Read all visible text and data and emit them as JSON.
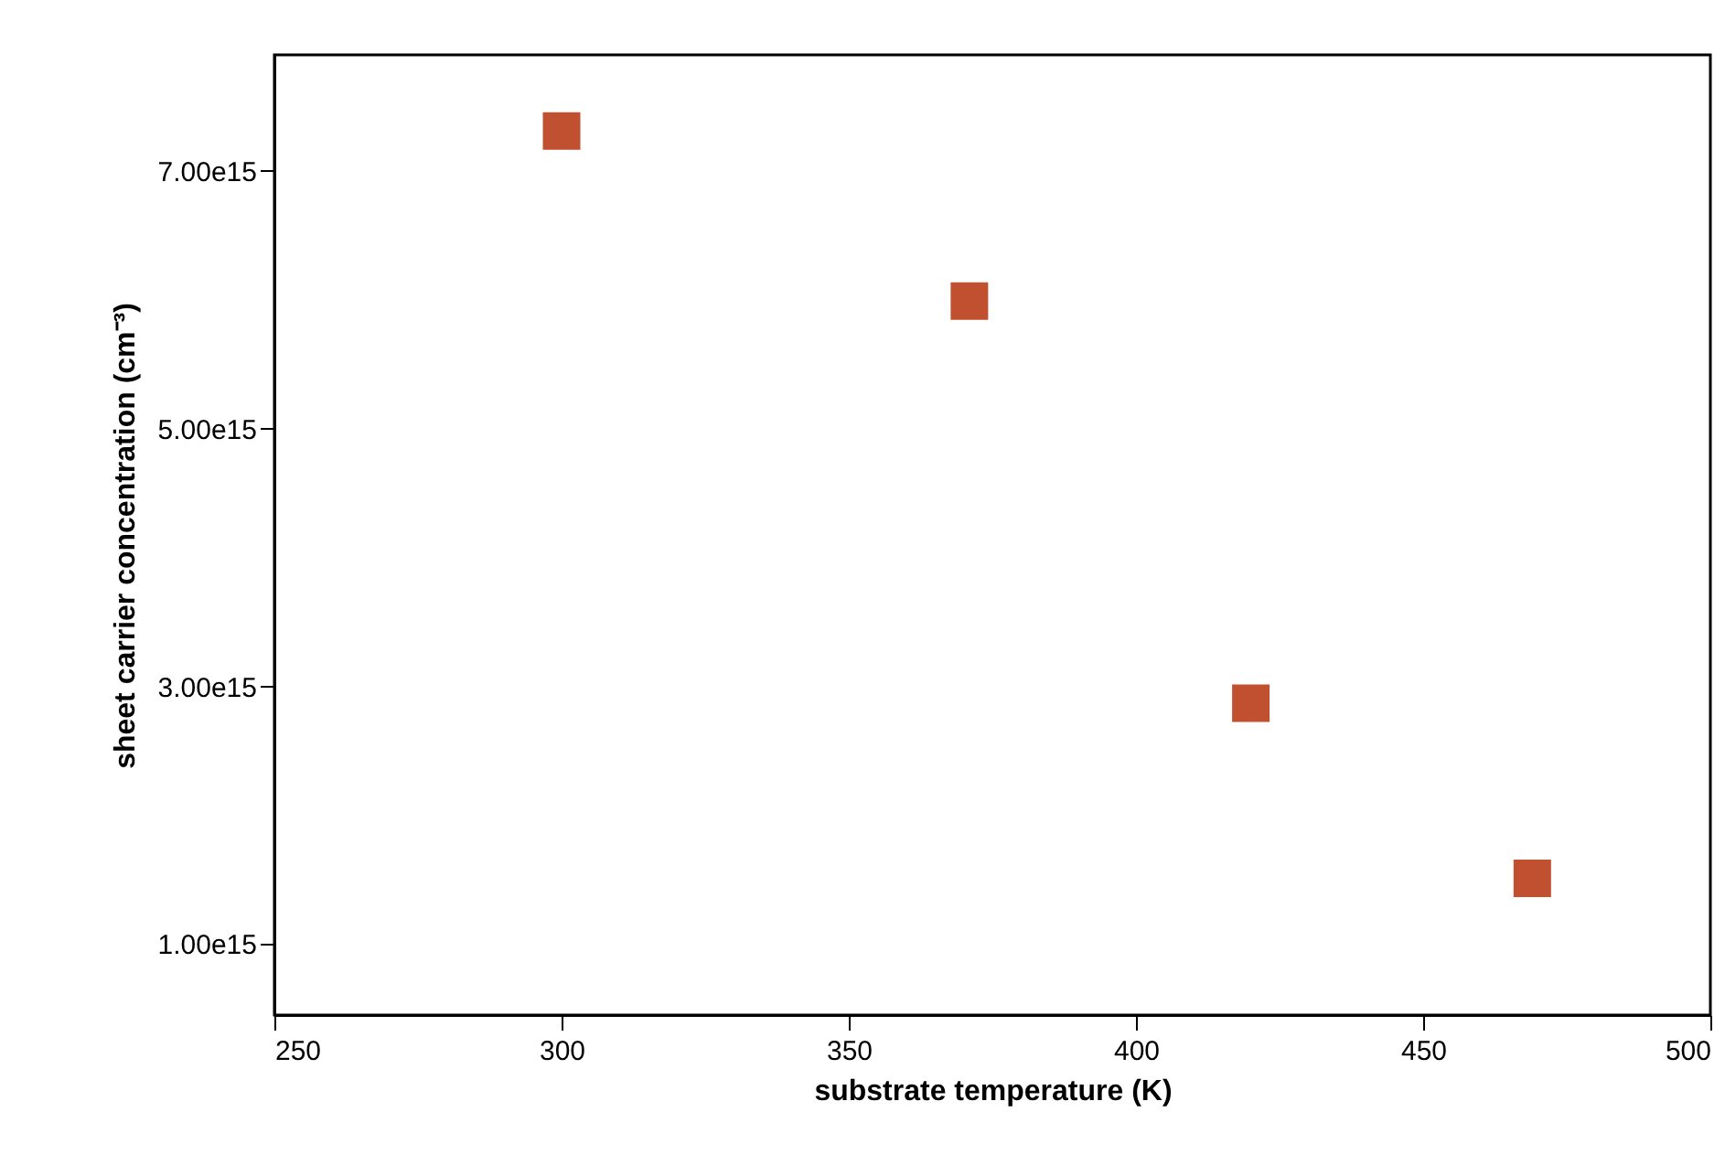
{
  "chart_data": {
    "type": "scatter",
    "xlabel": "substrate temperature (K)",
    "ylabel": "sheet carrier concentration (cm⁻³)",
    "x": [
      300,
      371,
      420,
      469
    ],
    "series": [
      {
        "color": "#c0502f",
        "values": [
          7310000000000000.0,
          5990000000000000.0,
          2870000000000000.0,
          1510000000000000.0
        ]
      }
    ],
    "xlim": [
      250,
      500
    ],
    "xticks": [
      250,
      300,
      350,
      400,
      450,
      500
    ],
    "ylim": [
      450000000000000.0,
      7900000000000000.0
    ],
    "yticks": [
      {
        "value": 1000000000000000.0,
        "label": "1.00e15"
      },
      {
        "value": 3000000000000000.0,
        "label": "3.00e15"
      },
      {
        "value": 5000000000000000.0,
        "label": "5.00e15"
      },
      {
        "value": 7000000000000000.0,
        "label": "7.00e15"
      }
    ],
    "marker": "square",
    "grid": false
  }
}
